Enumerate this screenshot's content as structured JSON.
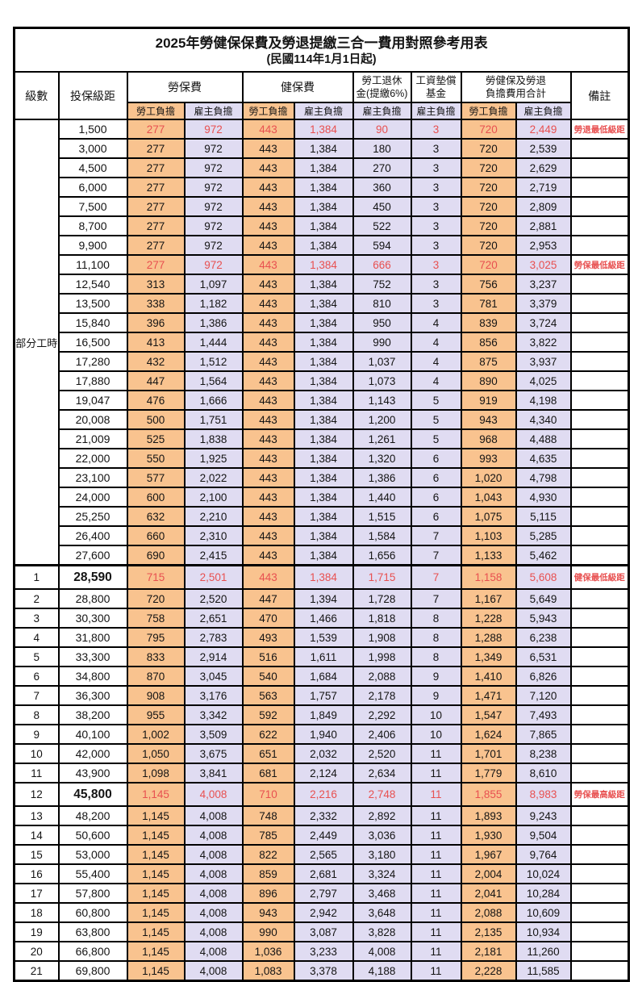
{
  "title": "2025年勞健保保費及勞退提繳三合一費用對照參考用表",
  "subtitle": "(民國114年1月1日起)",
  "colors": {
    "employee_bg": "#F9C38F",
    "employer_bg": "#E0DCF2",
    "red_text": "#E85050"
  },
  "header": {
    "level": "級數",
    "bracket": "投保級距",
    "labor_insurance": "勞保費",
    "health_insurance": "健保費",
    "pension": "勞工退休\n金(提繳6%)",
    "wage_fund": "工資墊償\n基金",
    "total": "勞健保及勞退\n負擔費用合計",
    "note": "備註",
    "employee": "勞工負擔",
    "employer": "雇主負擔"
  },
  "group_label": "部分工時",
  "rows": [
    {
      "level": "",
      "bracket": "1,500",
      "values": [
        "277",
        "972",
        "443",
        "1,384",
        "90",
        "3",
        "720",
        "2,449"
      ],
      "note": "勞退最低級距",
      "red": true,
      "key": false
    },
    {
      "level": "",
      "bracket": "3,000",
      "values": [
        "277",
        "972",
        "443",
        "1,384",
        "180",
        "3",
        "720",
        "2,539"
      ],
      "note": "",
      "red": false,
      "key": false
    },
    {
      "level": "",
      "bracket": "4,500",
      "values": [
        "277",
        "972",
        "443",
        "1,384",
        "270",
        "3",
        "720",
        "2,629"
      ],
      "note": "",
      "red": false,
      "key": false
    },
    {
      "level": "",
      "bracket": "6,000",
      "values": [
        "277",
        "972",
        "443",
        "1,384",
        "360",
        "3",
        "720",
        "2,719"
      ],
      "note": "",
      "red": false,
      "key": false
    },
    {
      "level": "",
      "bracket": "7,500",
      "values": [
        "277",
        "972",
        "443",
        "1,384",
        "450",
        "3",
        "720",
        "2,809"
      ],
      "note": "",
      "red": false,
      "key": false
    },
    {
      "level": "",
      "bracket": "8,700",
      "values": [
        "277",
        "972",
        "443",
        "1,384",
        "522",
        "3",
        "720",
        "2,881"
      ],
      "note": "",
      "red": false,
      "key": false
    },
    {
      "level": "",
      "bracket": "9,900",
      "values": [
        "277",
        "972",
        "443",
        "1,384",
        "594",
        "3",
        "720",
        "2,953"
      ],
      "note": "",
      "red": false,
      "key": false
    },
    {
      "level": "",
      "bracket": "11,100",
      "values": [
        "277",
        "972",
        "443",
        "1,384",
        "666",
        "3",
        "720",
        "3,025"
      ],
      "note": "勞保最低級距",
      "red": true,
      "key": false
    },
    {
      "level": "",
      "bracket": "12,540",
      "values": [
        "313",
        "1,097",
        "443",
        "1,384",
        "752",
        "3",
        "756",
        "3,237"
      ],
      "note": "",
      "red": false,
      "key": false
    },
    {
      "level": "",
      "bracket": "13,500",
      "values": [
        "338",
        "1,182",
        "443",
        "1,384",
        "810",
        "3",
        "781",
        "3,379"
      ],
      "note": "",
      "red": false,
      "key": false
    },
    {
      "level": "",
      "bracket": "15,840",
      "values": [
        "396",
        "1,386",
        "443",
        "1,384",
        "950",
        "4",
        "839",
        "3,724"
      ],
      "note": "",
      "red": false,
      "key": false
    },
    {
      "level": "",
      "bracket": "16,500",
      "values": [
        "413",
        "1,444",
        "443",
        "1,384",
        "990",
        "4",
        "856",
        "3,822"
      ],
      "note": "",
      "red": false,
      "key": false
    },
    {
      "level": "",
      "bracket": "17,280",
      "values": [
        "432",
        "1,512",
        "443",
        "1,384",
        "1,037",
        "4",
        "875",
        "3,937"
      ],
      "note": "",
      "red": false,
      "key": false
    },
    {
      "level": "",
      "bracket": "17,880",
      "values": [
        "447",
        "1,564",
        "443",
        "1,384",
        "1,073",
        "4",
        "890",
        "4,025"
      ],
      "note": "",
      "red": false,
      "key": false
    },
    {
      "level": "",
      "bracket": "19,047",
      "values": [
        "476",
        "1,666",
        "443",
        "1,384",
        "1,143",
        "5",
        "919",
        "4,198"
      ],
      "note": "",
      "red": false,
      "key": false
    },
    {
      "level": "",
      "bracket": "20,008",
      "values": [
        "500",
        "1,751",
        "443",
        "1,384",
        "1,200",
        "5",
        "943",
        "4,340"
      ],
      "note": "",
      "red": false,
      "key": false
    },
    {
      "level": "",
      "bracket": "21,009",
      "values": [
        "525",
        "1,838",
        "443",
        "1,384",
        "1,261",
        "5",
        "968",
        "4,488"
      ],
      "note": "",
      "red": false,
      "key": false
    },
    {
      "level": "",
      "bracket": "22,000",
      "values": [
        "550",
        "1,925",
        "443",
        "1,384",
        "1,320",
        "6",
        "993",
        "4,635"
      ],
      "note": "",
      "red": false,
      "key": false
    },
    {
      "level": "",
      "bracket": "23,100",
      "values": [
        "577",
        "2,022",
        "443",
        "1,384",
        "1,386",
        "6",
        "1,020",
        "4,798"
      ],
      "note": "",
      "red": false,
      "key": false
    },
    {
      "level": "",
      "bracket": "24,000",
      "values": [
        "600",
        "2,100",
        "443",
        "1,384",
        "1,440",
        "6",
        "1,043",
        "4,930"
      ],
      "note": "",
      "red": false,
      "key": false
    },
    {
      "level": "",
      "bracket": "25,250",
      "values": [
        "632",
        "2,210",
        "443",
        "1,384",
        "1,515",
        "6",
        "1,075",
        "5,115"
      ],
      "note": "",
      "red": false,
      "key": false
    },
    {
      "level": "",
      "bracket": "26,400",
      "values": [
        "660",
        "2,310",
        "443",
        "1,384",
        "1,584",
        "7",
        "1,103",
        "5,285"
      ],
      "note": "",
      "red": false,
      "key": false
    },
    {
      "level": "",
      "bracket": "27,600",
      "values": [
        "690",
        "2,415",
        "443",
        "1,384",
        "1,656",
        "7",
        "1,133",
        "5,462"
      ],
      "note": "",
      "red": false,
      "key": false
    },
    {
      "level": "1",
      "bracket": "28,590",
      "values": [
        "715",
        "2,501",
        "443",
        "1,384",
        "1,715",
        "7",
        "1,158",
        "5,608"
      ],
      "note": "健保最低級距",
      "red": true,
      "key": true
    },
    {
      "level": "2",
      "bracket": "28,800",
      "values": [
        "720",
        "2,520",
        "447",
        "1,394",
        "1,728",
        "7",
        "1,167",
        "5,649"
      ],
      "note": "",
      "red": false,
      "key": false
    },
    {
      "level": "3",
      "bracket": "30,300",
      "values": [
        "758",
        "2,651",
        "470",
        "1,466",
        "1,818",
        "8",
        "1,228",
        "5,943"
      ],
      "note": "",
      "red": false,
      "key": false
    },
    {
      "level": "4",
      "bracket": "31,800",
      "values": [
        "795",
        "2,783",
        "493",
        "1,539",
        "1,908",
        "8",
        "1,288",
        "6,238"
      ],
      "note": "",
      "red": false,
      "key": false
    },
    {
      "level": "5",
      "bracket": "33,300",
      "values": [
        "833",
        "2,914",
        "516",
        "1,611",
        "1,998",
        "8",
        "1,349",
        "6,531"
      ],
      "note": "",
      "red": false,
      "key": false
    },
    {
      "level": "6",
      "bracket": "34,800",
      "values": [
        "870",
        "3,045",
        "540",
        "1,684",
        "2,088",
        "9",
        "1,410",
        "6,826"
      ],
      "note": "",
      "red": false,
      "key": false
    },
    {
      "level": "7",
      "bracket": "36,300",
      "values": [
        "908",
        "3,176",
        "563",
        "1,757",
        "2,178",
        "9",
        "1,471",
        "7,120"
      ],
      "note": "",
      "red": false,
      "key": false
    },
    {
      "level": "8",
      "bracket": "38,200",
      "values": [
        "955",
        "3,342",
        "592",
        "1,849",
        "2,292",
        "10",
        "1,547",
        "7,493"
      ],
      "note": "",
      "red": false,
      "key": false
    },
    {
      "level": "9",
      "bracket": "40,100",
      "values": [
        "1,002",
        "3,509",
        "622",
        "1,940",
        "2,406",
        "10",
        "1,624",
        "7,865"
      ],
      "note": "",
      "red": false,
      "key": false
    },
    {
      "level": "10",
      "bracket": "42,000",
      "values": [
        "1,050",
        "3,675",
        "651",
        "2,032",
        "2,520",
        "11",
        "1,701",
        "8,238"
      ],
      "note": "",
      "red": false,
      "key": false
    },
    {
      "level": "11",
      "bracket": "43,900",
      "values": [
        "1,098",
        "3,841",
        "681",
        "2,124",
        "2,634",
        "11",
        "1,779",
        "8,610"
      ],
      "note": "",
      "red": false,
      "key": false
    },
    {
      "level": "12",
      "bracket": "45,800",
      "values": [
        "1,145",
        "4,008",
        "710",
        "2,216",
        "2,748",
        "11",
        "1,855",
        "8,983"
      ],
      "note": "勞保最高級距",
      "red": true,
      "key": true
    },
    {
      "level": "13",
      "bracket": "48,200",
      "values": [
        "1,145",
        "4,008",
        "748",
        "2,332",
        "2,892",
        "11",
        "1,893",
        "9,243"
      ],
      "note": "",
      "red": false,
      "key": false
    },
    {
      "level": "14",
      "bracket": "50,600",
      "values": [
        "1,145",
        "4,008",
        "785",
        "2,449",
        "3,036",
        "11",
        "1,930",
        "9,504"
      ],
      "note": "",
      "red": false,
      "key": false
    },
    {
      "level": "15",
      "bracket": "53,000",
      "values": [
        "1,145",
        "4,008",
        "822",
        "2,565",
        "3,180",
        "11",
        "1,967",
        "9,764"
      ],
      "note": "",
      "red": false,
      "key": false
    },
    {
      "level": "16",
      "bracket": "55,400",
      "values": [
        "1,145",
        "4,008",
        "859",
        "2,681",
        "3,324",
        "11",
        "2,004",
        "10,024"
      ],
      "note": "",
      "red": false,
      "key": false
    },
    {
      "level": "17",
      "bracket": "57,800",
      "values": [
        "1,145",
        "4,008",
        "896",
        "2,797",
        "3,468",
        "11",
        "2,041",
        "10,284"
      ],
      "note": "",
      "red": false,
      "key": false
    },
    {
      "level": "18",
      "bracket": "60,800",
      "values": [
        "1,145",
        "4,008",
        "943",
        "2,942",
        "3,648",
        "11",
        "2,088",
        "10,609"
      ],
      "note": "",
      "red": false,
      "key": false
    },
    {
      "level": "19",
      "bracket": "63,800",
      "values": [
        "1,145",
        "4,008",
        "990",
        "3,087",
        "3,828",
        "11",
        "2,135",
        "10,934"
      ],
      "note": "",
      "red": false,
      "key": false
    },
    {
      "level": "20",
      "bracket": "66,800",
      "values": [
        "1,145",
        "4,008",
        "1,036",
        "3,233",
        "4,008",
        "11",
        "2,181",
        "11,260"
      ],
      "note": "",
      "red": false,
      "key": false
    },
    {
      "level": "21",
      "bracket": "69,800",
      "values": [
        "1,145",
        "4,008",
        "1,083",
        "3,378",
        "4,188",
        "11",
        "2,228",
        "11,585"
      ],
      "note": "",
      "red": false,
      "key": false
    }
  ]
}
